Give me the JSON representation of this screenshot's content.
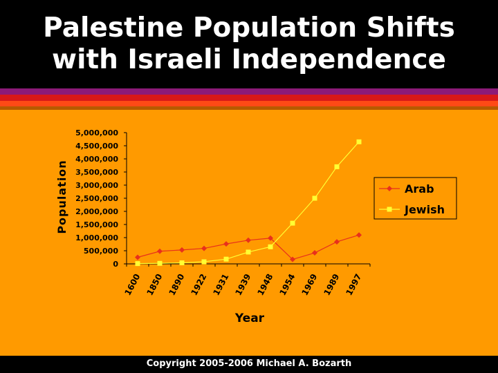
{
  "slide": {
    "title_line1": "Palestine Population Shifts",
    "title_line2": "with Israeli Independence",
    "copyright": "Copyright 2005-2006 Michael A. Bozarth"
  },
  "colors": {
    "background": "#ff9a00",
    "arab": "#e8301c",
    "jewish": "#ffff33",
    "stripes": [
      "#8c1a78",
      "#d81818",
      "#ff4a16",
      "#b85a00"
    ]
  },
  "chart_data": {
    "type": "line",
    "xlabel": "Year",
    "ylabel": "Population",
    "categories": [
      "1600",
      "1850",
      "1890",
      "1922",
      "1931",
      "1939",
      "1948",
      "1954",
      "1969",
      "1989",
      "1997"
    ],
    "ylim": [
      0,
      5000000
    ],
    "yticks": [
      "0",
      "500,000",
      "1,000,000",
      "1,500,000",
      "2,000,000",
      "2,500,000",
      "3,000,000",
      "3,500,000",
      "4,000,000",
      "4,500,000",
      "5,000,000"
    ],
    "legend_position": "right",
    "grid": false,
    "series": [
      {
        "name": "Arab",
        "marker": "diamond",
        "values": [
          250000,
          480000,
          530000,
          590000,
          760000,
          900000,
          980000,
          170000,
          420000,
          840000,
          1100000
        ]
      },
      {
        "name": "Jewish",
        "marker": "square",
        "values": [
          10000,
          20000,
          40000,
          80000,
          180000,
          450000,
          650000,
          1550000,
          2500000,
          3700000,
          4650000
        ]
      }
    ]
  }
}
